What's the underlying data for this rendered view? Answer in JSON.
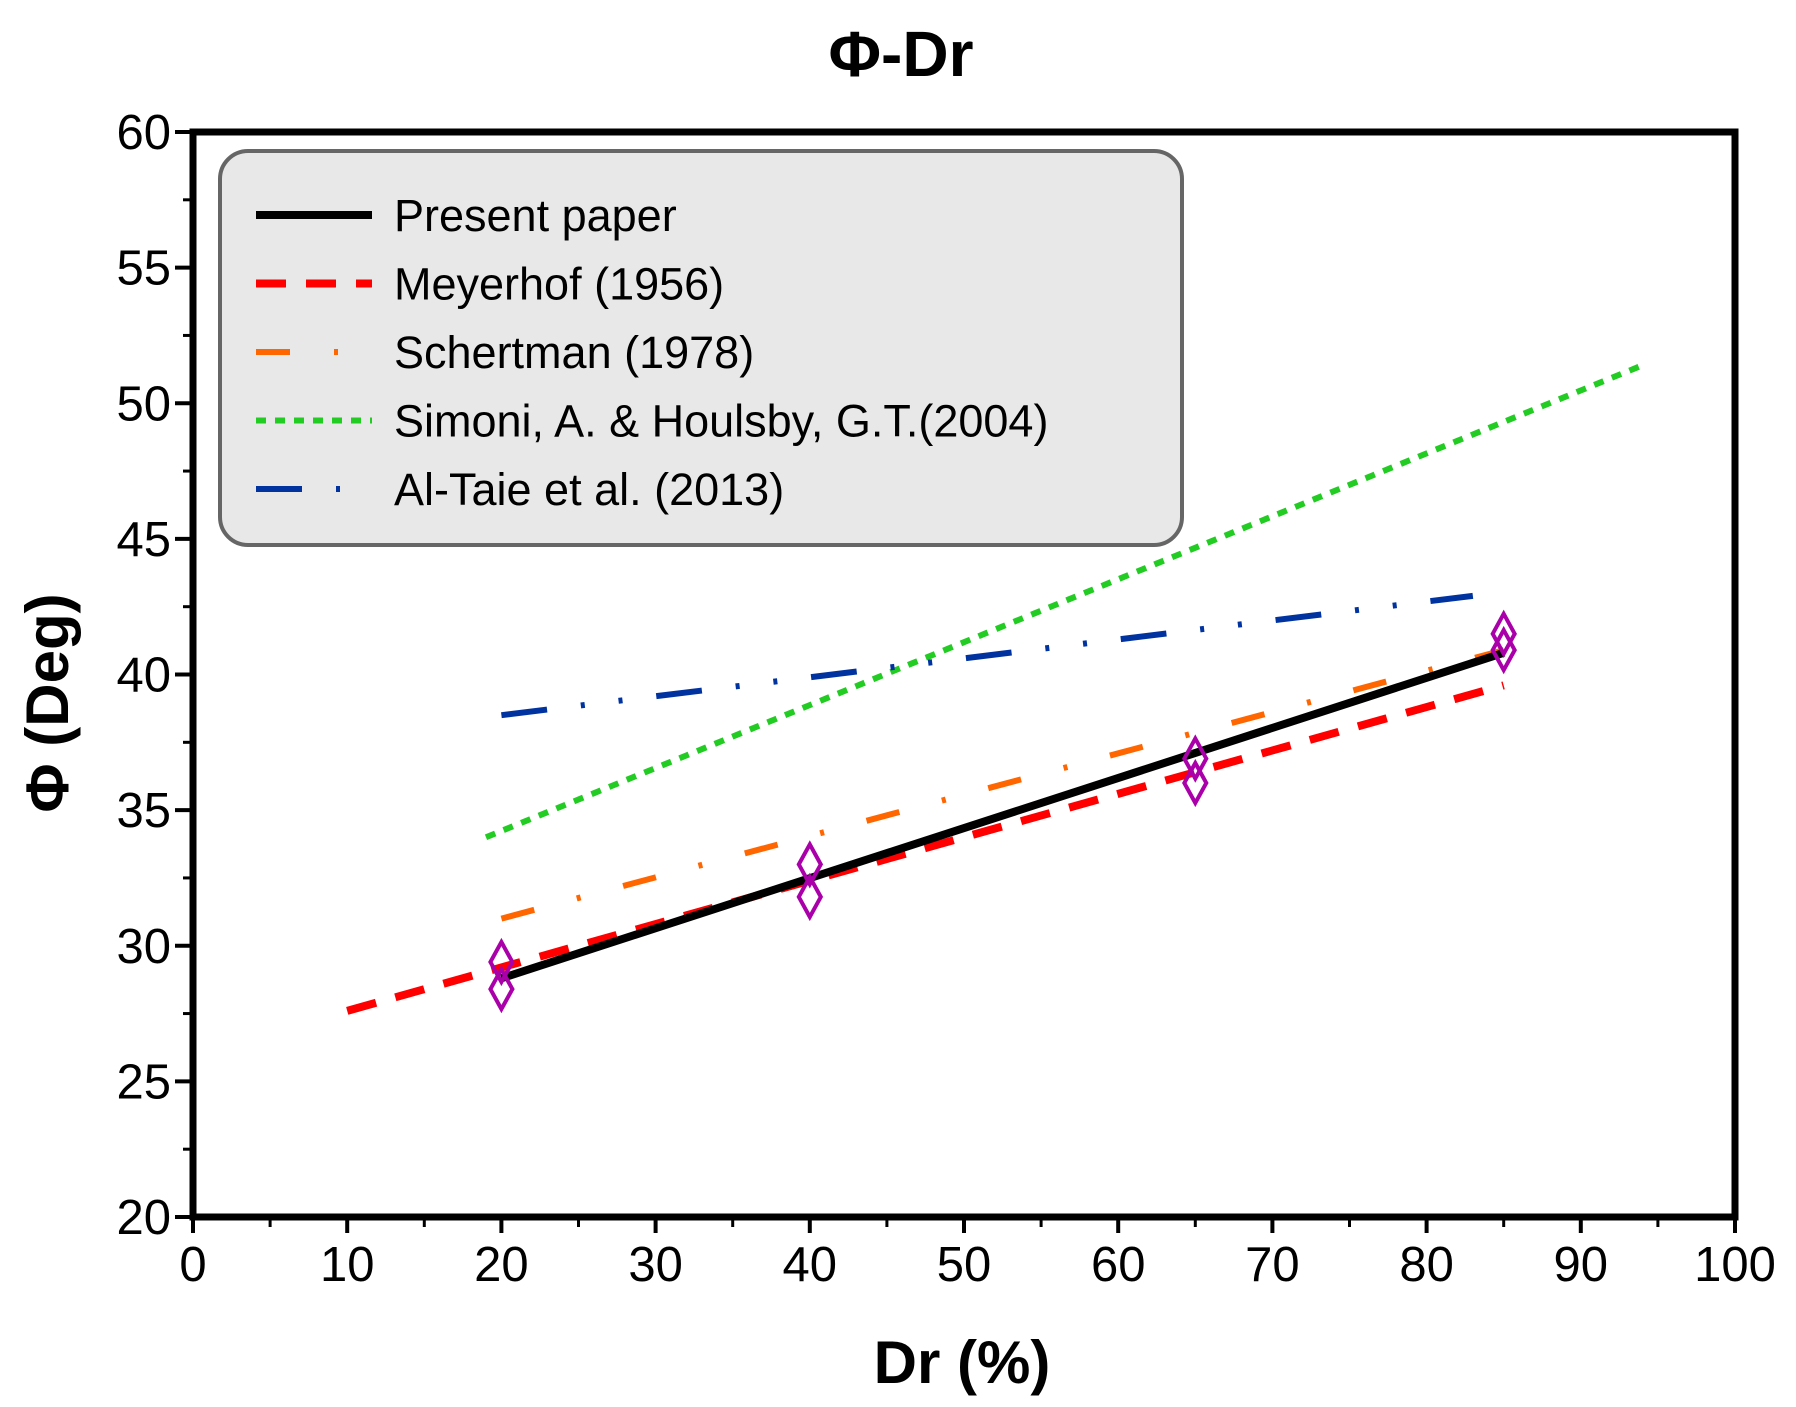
{
  "chart_data": {
    "type": "line",
    "title": "Φ-Dr",
    "xlabel": "Dr (%)",
    "ylabel": "Φ (Deg)",
    "xlim": [
      0,
      100
    ],
    "ylim": [
      20,
      60
    ],
    "xticks": [
      0,
      10,
      20,
      30,
      40,
      50,
      60,
      70,
      80,
      90,
      100
    ],
    "xtick_labels": [
      "0",
      "10",
      "20",
      "30",
      "40",
      "50",
      "60",
      "70",
      "80",
      "90",
      "100"
    ],
    "yticks": [
      20,
      25,
      30,
      35,
      40,
      45,
      50,
      55,
      60
    ],
    "ytick_labels": [
      "20",
      "25",
      "30",
      "35",
      "40",
      "45",
      "50",
      "55",
      "60"
    ],
    "grid": false,
    "legend_position": "top-left",
    "series": [
      {
        "name": "Present paper",
        "color": "#000000",
        "style": "solid",
        "x": [
          20,
          85
        ],
        "y": [
          28.8,
          40.8
        ]
      },
      {
        "name": "Meyerhof (1956)",
        "color": "#ff0000",
        "style": "dashed",
        "x": [
          10,
          85
        ],
        "y": [
          27.6,
          39.6
        ]
      },
      {
        "name": "Schertman (1978)",
        "color": "#ff6600",
        "style": "dash-dot",
        "x": [
          20,
          85
        ],
        "y": [
          31.0,
          40.9
        ]
      },
      {
        "name": "Simoni, A. & Houlsby, G.T.(2004)",
        "color": "#22cc22",
        "style": "dotted",
        "x": [
          19,
          94
        ],
        "y": [
          34.0,
          51.4
        ]
      },
      {
        "name": "Al-Taie et al. (2013)",
        "color": "#0033a0",
        "style": "dash-dot-dot",
        "x": [
          20,
          83
        ],
        "y": [
          38.5,
          42.9
        ]
      }
    ],
    "markers": {
      "shape": "diamond",
      "color": "#aa00aa",
      "points": [
        {
          "x": 20,
          "y": 29.4
        },
        {
          "x": 20,
          "y": 28.4
        },
        {
          "x": 40,
          "y": 33.0
        },
        {
          "x": 40,
          "y": 31.8
        },
        {
          "x": 65,
          "y": 36.9
        },
        {
          "x": 65,
          "y": 36.0
        },
        {
          "x": 85,
          "y": 41.5
        },
        {
          "x": 85,
          "y": 40.9
        }
      ]
    }
  }
}
